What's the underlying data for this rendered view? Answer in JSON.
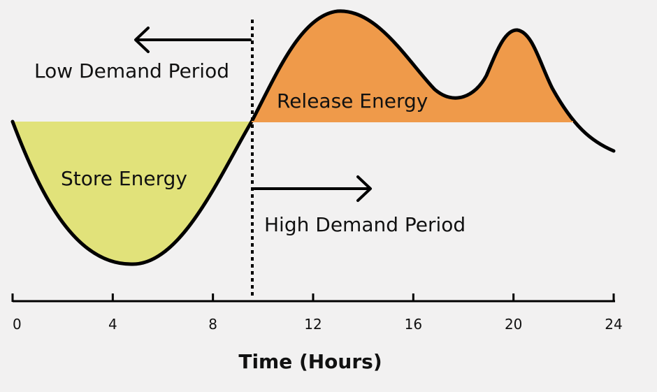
{
  "diagram": {
    "labels": {
      "low_demand": "Low Demand Period",
      "high_demand": "High Demand Period",
      "store_energy": "Store Energy",
      "release_energy": "Release Energy"
    },
    "axis": {
      "title": "Time (Hours)",
      "ticks": [
        "0",
        "4",
        "8",
        "12",
        "16",
        "20",
        "24"
      ]
    },
    "colors": {
      "store_fill": "#e1e27a",
      "release_fill": "#ef9a4a",
      "line": "#000000",
      "background": "#f2f1f1"
    }
  }
}
